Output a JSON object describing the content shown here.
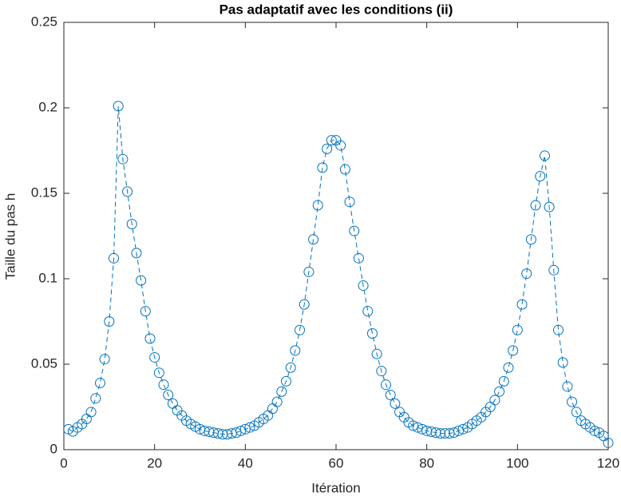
{
  "chart_data": {
    "type": "line",
    "title": "Pas adaptatif avec les conditions (ii)",
    "x_label": "Itération",
    "y_label": "Taille du pas h",
    "color": "#0072BD",
    "line_style": "dashed",
    "marker": "circle",
    "x": [
      1,
      2,
      3,
      4,
      5,
      6,
      7,
      8,
      9,
      10,
      11,
      12,
      13,
      14,
      15,
      16,
      17,
      18,
      19,
      20,
      21,
      22,
      23,
      24,
      25,
      26,
      27,
      28,
      29,
      30,
      31,
      32,
      33,
      34,
      35,
      36,
      37,
      38,
      39,
      40,
      41,
      42,
      43,
      44,
      45,
      46,
      47,
      48,
      49,
      50,
      51,
      52,
      53,
      54,
      55,
      56,
      57,
      58,
      59,
      60,
      61,
      62,
      63,
      64,
      65,
      66,
      67,
      68,
      69,
      70,
      71,
      72,
      73,
      74,
      75,
      76,
      77,
      78,
      79,
      80,
      81,
      82,
      83,
      84,
      85,
      86,
      87,
      88,
      89,
      90,
      91,
      92,
      93,
      94,
      95,
      96,
      97,
      98,
      99,
      100,
      101,
      102,
      103,
      104,
      105,
      106,
      107,
      108,
      109,
      110,
      111,
      112,
      113,
      114,
      115,
      116,
      117,
      118,
      119,
      120
    ],
    "values": [
      0.012,
      0.0107,
      0.013,
      0.015,
      0.018,
      0.022,
      0.03,
      0.039,
      0.053,
      0.075,
      0.112,
      0.201,
      0.17,
      0.151,
      0.132,
      0.115,
      0.099,
      0.081,
      0.065,
      0.054,
      0.045,
      0.038,
      0.032,
      0.027,
      0.023,
      0.02,
      0.017,
      0.015,
      0.0135,
      0.012,
      0.011,
      0.0105,
      0.01,
      0.0095,
      0.009,
      0.009,
      0.0095,
      0.01,
      0.011,
      0.012,
      0.013,
      0.014,
      0.016,
      0.018,
      0.02,
      0.024,
      0.028,
      0.034,
      0.04,
      0.048,
      0.058,
      0.07,
      0.085,
      0.104,
      0.123,
      0.143,
      0.165,
      0.176,
      0.181,
      0.181,
      0.178,
      0.164,
      0.145,
      0.128,
      0.112,
      0.096,
      0.081,
      0.068,
      0.056,
      0.046,
      0.038,
      0.032,
      0.027,
      0.022,
      0.019,
      0.016,
      0.014,
      0.013,
      0.012,
      0.011,
      0.0105,
      0.01,
      0.0095,
      0.0095,
      0.0095,
      0.01,
      0.011,
      0.012,
      0.013,
      0.015,
      0.017,
      0.019,
      0.022,
      0.025,
      0.029,
      0.034,
      0.04,
      0.048,
      0.058,
      0.07,
      0.085,
      0.103,
      0.123,
      0.143,
      0.16,
      0.172,
      0.142,
      0.105,
      0.07,
      0.051,
      0.037,
      0.028,
      0.022,
      0.017,
      0.015,
      0.013,
      0.011,
      0.01,
      0.008,
      0.004
    ],
    "xlim": [
      0,
      120
    ],
    "xticks": [
      0,
      20,
      40,
      60,
      80,
      100,
      120
    ],
    "ylim": [
      0,
      0.25
    ],
    "yticks": [
      0,
      0.05,
      0.1,
      0.15,
      0.2,
      0.25
    ]
  }
}
